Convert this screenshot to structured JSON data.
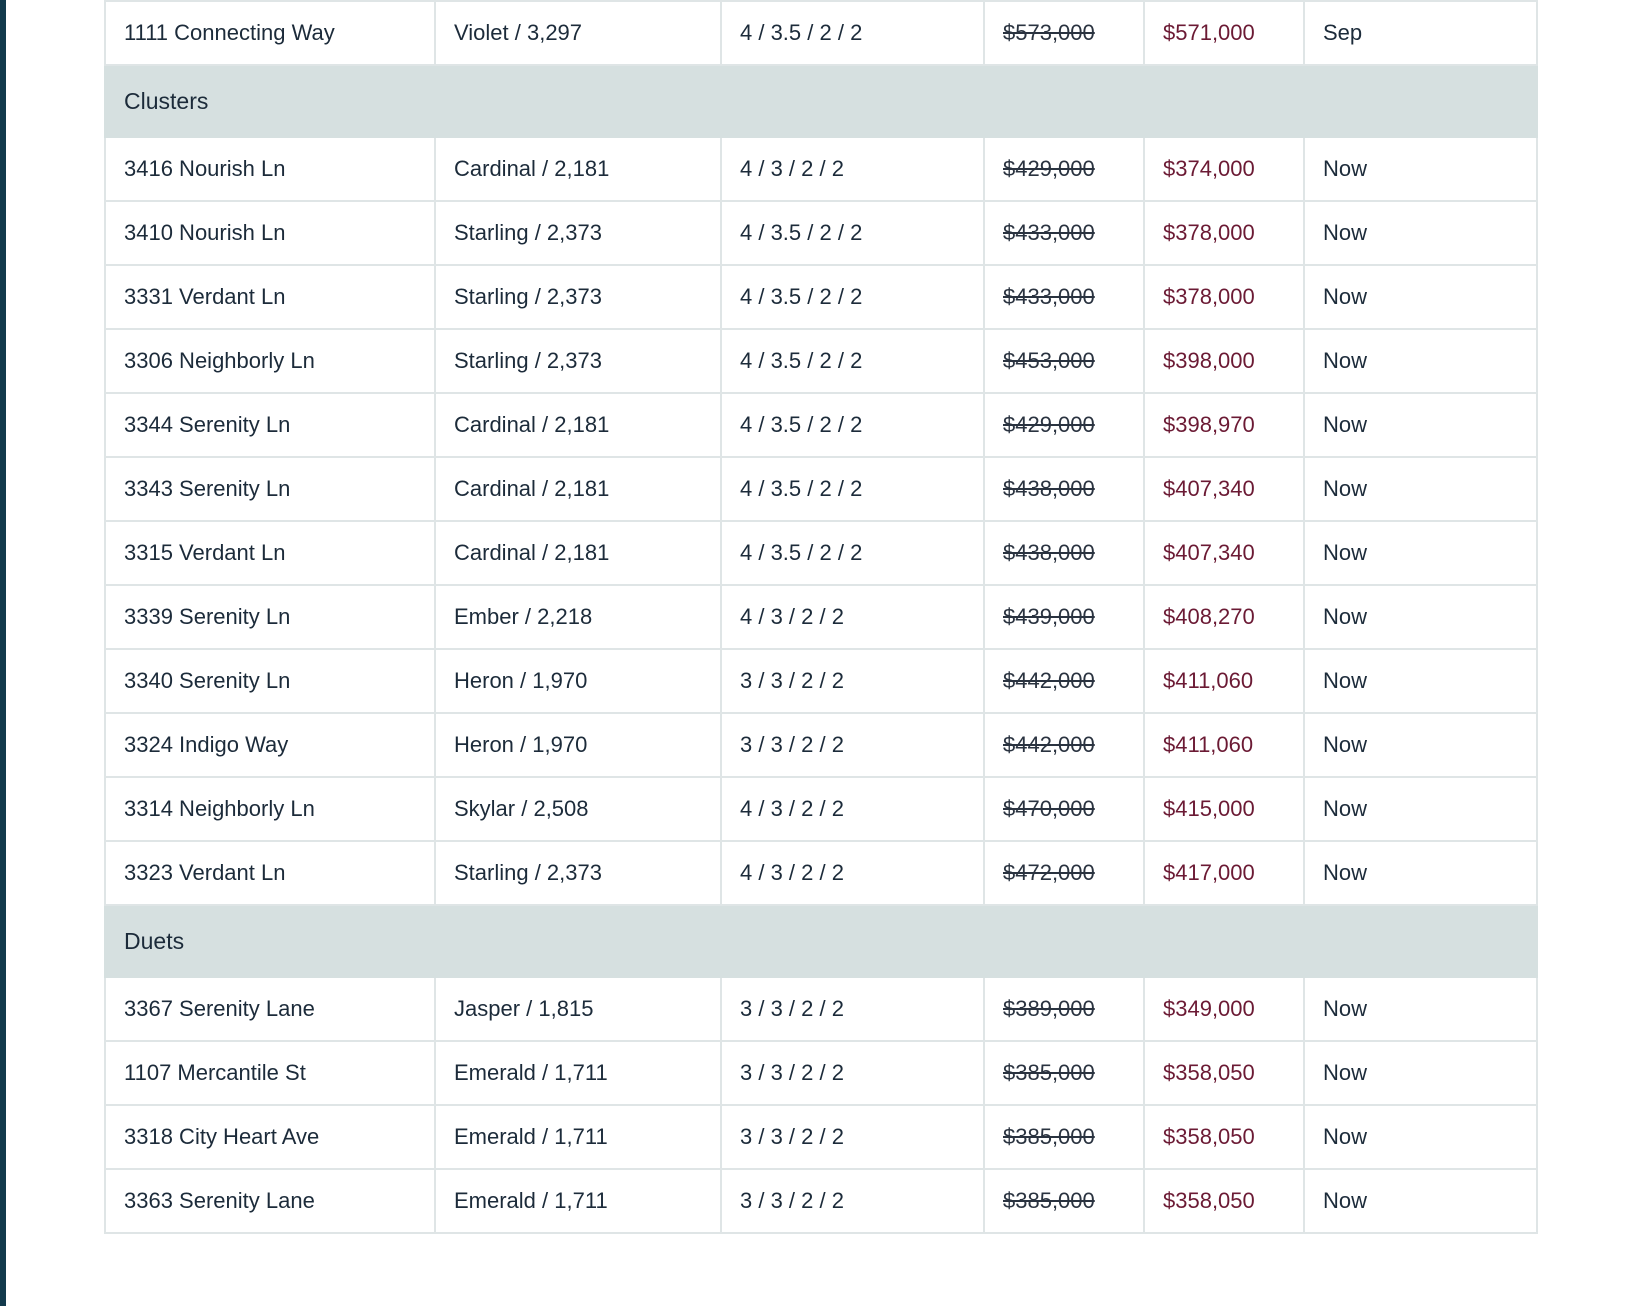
{
  "rows": [
    {
      "type": "home",
      "address": "1111 Connecting Way",
      "plan": "Violet / 3,297",
      "config": "4 / 3.5 / 2 / 2",
      "was_price": "$573,000",
      "now_price": "$571,000",
      "available": "Sep"
    },
    {
      "type": "group",
      "label": "Clusters"
    },
    {
      "type": "home",
      "address": "3416 Nourish Ln",
      "plan": "Cardinal / 2,181",
      "config": "4 / 3 / 2 / 2",
      "was_price": "$429,000",
      "now_price": "$374,000",
      "available": "Now"
    },
    {
      "type": "home",
      "address": "3410 Nourish Ln",
      "plan": "Starling / 2,373",
      "config": "4 / 3.5 / 2 / 2",
      "was_price": "$433,000",
      "now_price": "$378,000",
      "available": "Now"
    },
    {
      "type": "home",
      "address": "3331 Verdant Ln",
      "plan": "Starling / 2,373",
      "config": "4 / 3.5 / 2 / 2",
      "was_price": "$433,000",
      "now_price": "$378,000",
      "available": "Now"
    },
    {
      "type": "home",
      "address": "3306 Neighborly Ln",
      "plan": "Starling / 2,373",
      "config": "4 / 3.5 / 2 / 2",
      "was_price": "$453,000",
      "now_price": "$398,000",
      "available": "Now"
    },
    {
      "type": "home",
      "address": "3344 Serenity Ln",
      "plan": "Cardinal / 2,181",
      "config": "4 / 3.5 / 2 / 2",
      "was_price": "$429,000",
      "now_price": "$398,970",
      "available": "Now"
    },
    {
      "type": "home",
      "address": "3343 Serenity Ln",
      "plan": "Cardinal / 2,181",
      "config": "4 / 3.5 / 2 / 2",
      "was_price": "$438,000",
      "now_price": "$407,340",
      "available": "Now"
    },
    {
      "type": "home",
      "address": "3315 Verdant Ln",
      "plan": "Cardinal / 2,181",
      "config": "4 / 3.5 / 2 / 2",
      "was_price": "$438,000",
      "now_price": "$407,340",
      "available": "Now"
    },
    {
      "type": "home",
      "address": "3339 Serenity Ln",
      "plan": "Ember / 2,218",
      "config": "4 / 3 / 2 / 2",
      "was_price": "$439,000",
      "now_price": "$408,270",
      "available": "Now"
    },
    {
      "type": "home",
      "address": "3340 Serenity Ln",
      "plan": "Heron / 1,970",
      "config": "3 / 3 / 2 / 2",
      "was_price": "$442,000",
      "now_price": "$411,060",
      "available": "Now"
    },
    {
      "type": "home",
      "address": "3324 Indigo Way",
      "plan": "Heron / 1,970",
      "config": "3 / 3 / 2 / 2",
      "was_price": "$442,000",
      "now_price": "$411,060",
      "available": "Now"
    },
    {
      "type": "home",
      "address": "3314 Neighborly Ln",
      "plan": "Skylar / 2,508",
      "config": "4 / 3 / 2 / 2",
      "was_price": "$470,000",
      "now_price": "$415,000",
      "available": "Now"
    },
    {
      "type": "home",
      "address": "3323 Verdant Ln",
      "plan": "Starling / 2,373",
      "config": "4 / 3 / 2 / 2",
      "was_price": "$472,000",
      "now_price": "$417,000",
      "available": "Now"
    },
    {
      "type": "group",
      "label": "Duets"
    },
    {
      "type": "home",
      "address": "3367 Serenity Lane",
      "plan": "Jasper / 1,815",
      "config": "3 / 3 / 2 / 2",
      "was_price": "$389,000",
      "now_price": "$349,000",
      "available": "Now"
    },
    {
      "type": "home",
      "address": "1107 Mercantile St",
      "plan": "Emerald / 1,711",
      "config": "3 / 3 / 2 / 2",
      "was_price": "$385,000",
      "now_price": "$358,050",
      "available": "Now"
    },
    {
      "type": "home",
      "address": "3318 City Heart Ave",
      "plan": "Emerald / 1,711",
      "config": "3 / 3 / 2 / 2",
      "was_price": "$385,000",
      "now_price": "$358,050",
      "available": "Now"
    },
    {
      "type": "home",
      "address": "3363 Serenity Lane",
      "plan": "Emerald / 1,711",
      "config": "3 / 3 / 2 / 2",
      "was_price": "$385,000",
      "now_price": "$358,050",
      "available": "Now"
    }
  ],
  "colors": {
    "sidebar_accent": "#123a4c",
    "group_row_bg": "#d6e0e0",
    "sale_price": "#6b1a34",
    "text": "#1c2b3a",
    "grid_line": "#dfe5e6"
  }
}
